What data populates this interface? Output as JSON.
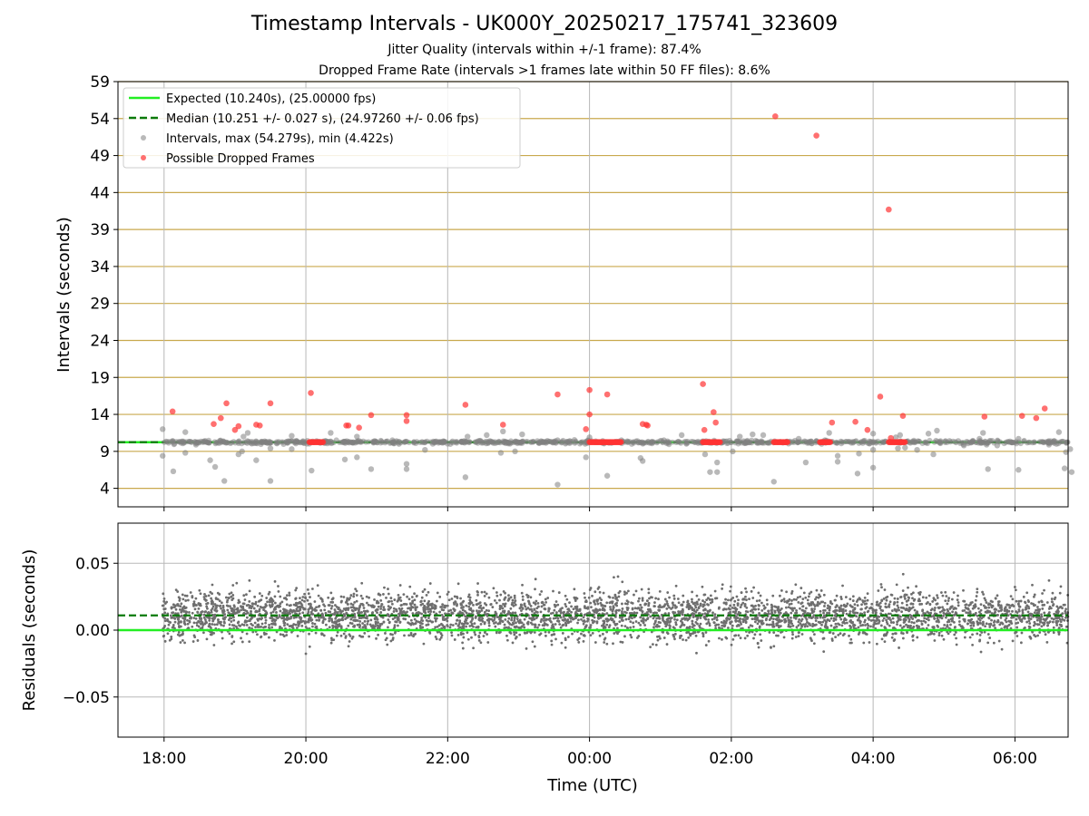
{
  "title": "Timestamp Intervals - UK000Y_20250217_175741_323609",
  "subtitle_jitter": "Jitter Quality (intervals within +/-1 frame): 87.4%",
  "subtitle_dropped": "Dropped Frame Rate (intervals >1 frames late within 50 FF files): 8.6%",
  "colors": {
    "expected": "#22ee22",
    "median": "#0a7a0a",
    "intervals": "#808080",
    "dropped": "#ff3333",
    "hgrid": "#c9a94e",
    "vgrid": "#b8b8b8"
  },
  "chart_data": [
    {
      "type": "scatter",
      "ylabel": "Intervals (seconds)",
      "ylim": [
        1.5,
        59
      ],
      "yticks": [
        4,
        9,
        14,
        19,
        24,
        29,
        34,
        39,
        44,
        49,
        54,
        59
      ],
      "grid": true,
      "legend_position": "top-left",
      "legend": [
        "Expected (10.240s), (25.00000 fps)",
        "Median (10.251 +/- 0.027 s), (24.97260 +/- 0.06 fps)",
        "Intervals, max (54.279s), min (4.422s)",
        "Possible Dropped Frames"
      ],
      "expected_interval": 10.24,
      "median_interval": 10.251,
      "series": [
        {
          "name": "Intervals, max (54.279s), min (4.422s)",
          "points": [
            [
              17.98,
              12.0
            ],
            [
              17.98,
              8.4
            ],
            [
              18.13,
              6.3
            ],
            [
              18.3,
              8.8
            ],
            [
              18.3,
              11.6
            ],
            [
              18.45,
              9.9
            ],
            [
              18.65,
              7.8
            ],
            [
              18.72,
              6.9
            ],
            [
              18.85,
              5.0
            ],
            [
              19.05,
              8.6
            ],
            [
              19.1,
              9.0
            ],
            [
              19.12,
              11.0
            ],
            [
              19.18,
              11.5
            ],
            [
              19.3,
              7.8
            ],
            [
              19.5,
              5.0
            ],
            [
              19.5,
              9.4
            ],
            [
              19.8,
              9.3
            ],
            [
              19.8,
              11.1
            ],
            [
              20.08,
              6.4
            ],
            [
              20.35,
              11.5
            ],
            [
              20.55,
              7.9
            ],
            [
              20.72,
              8.2
            ],
            [
              20.72,
              11.0
            ],
            [
              20.92,
              6.6
            ],
            [
              21.22,
              10.5
            ],
            [
              21.42,
              6.6
            ],
            [
              21.42,
              7.3
            ],
            [
              21.68,
              9.2
            ],
            [
              21.95,
              10.3
            ],
            [
              22.25,
              5.5
            ],
            [
              22.28,
              11.0
            ],
            [
              22.55,
              11.2
            ],
            [
              22.75,
              8.8
            ],
            [
              22.78,
              11.7
            ],
            [
              22.95,
              9.0
            ],
            [
              23.05,
              11.3
            ],
            [
              23.55,
              4.5
            ],
            [
              23.55,
              10.5
            ],
            [
              23.72,
              10.4
            ],
            [
              23.95,
              8.2
            ],
            [
              24.0,
              10.9
            ],
            [
              24.25,
              5.7
            ],
            [
              24.45,
              10.5
            ],
            [
              24.72,
              8.1
            ],
            [
              24.75,
              7.7
            ],
            [
              25.05,
              10.5
            ],
            [
              25.25,
              10.3
            ],
            [
              25.3,
              11.2
            ],
            [
              25.63,
              8.6
            ],
            [
              25.7,
              6.2
            ],
            [
              25.8,
              6.2
            ],
            [
              25.8,
              7.5
            ],
            [
              26.02,
              9.0
            ],
            [
              26.12,
              11.0
            ],
            [
              26.3,
              11.3
            ],
            [
              26.45,
              11.2
            ],
            [
              26.6,
              4.9
            ],
            [
              26.95,
              10.7
            ],
            [
              27.05,
              7.5
            ],
            [
              27.32,
              10.5
            ],
            [
              27.38,
              11.5
            ],
            [
              27.5,
              7.6
            ],
            [
              27.5,
              8.4
            ],
            [
              27.78,
              6.0
            ],
            [
              27.8,
              8.7
            ],
            [
              28.0,
              11.4
            ],
            [
              28.0,
              6.8
            ],
            [
              28.0,
              9.2
            ],
            [
              28.32,
              10.9
            ],
            [
              28.35,
              9.4
            ],
            [
              28.38,
              11.2
            ],
            [
              28.45,
              9.5
            ],
            [
              28.62,
              9.2
            ],
            [
              28.78,
              11.4
            ],
            [
              28.85,
              8.6
            ],
            [
              28.9,
              11.8
            ],
            [
              29.2,
              10.4
            ],
            [
              29.28,
              9.8
            ],
            [
              29.5,
              10.7
            ],
            [
              29.55,
              11.5
            ],
            [
              29.62,
              6.6
            ],
            [
              29.6,
              9.9
            ],
            [
              29.75,
              9.8
            ],
            [
              30.05,
              6.5
            ],
            [
              30.05,
              10.7
            ],
            [
              30.48,
              9.9
            ],
            [
              30.62,
              11.6
            ],
            [
              30.7,
              6.7
            ],
            [
              30.72,
              8.9
            ],
            [
              30.8,
              6.2
            ],
            [
              30.78,
              9.3
            ]
          ]
        },
        {
          "name": "Possible Dropped Frames",
          "points": [
            [
              18.12,
              14.4
            ],
            [
              18.7,
              12.7
            ],
            [
              18.8,
              13.5
            ],
            [
              18.88,
              15.5
            ],
            [
              19.0,
              11.9
            ],
            [
              19.05,
              12.4
            ],
            [
              19.3,
              12.6
            ],
            [
              19.35,
              12.5
            ],
            [
              19.5,
              15.5
            ],
            [
              20.07,
              16.9
            ],
            [
              20.57,
              12.5
            ],
            [
              20.6,
              12.5
            ],
            [
              20.75,
              12.2
            ],
            [
              20.92,
              13.9
            ],
            [
              21.42,
              13.9
            ],
            [
              21.42,
              13.1
            ],
            [
              22.25,
              15.3
            ],
            [
              22.78,
              12.6
            ],
            [
              23.55,
              16.7
            ],
            [
              23.95,
              12.0
            ],
            [
              24.0,
              17.3
            ],
            [
              24.0,
              14.0
            ],
            [
              24.25,
              16.7
            ],
            [
              24.75,
              12.7
            ],
            [
              24.8,
              12.6
            ],
            [
              24.82,
              12.5
            ],
            [
              25.6,
              18.1
            ],
            [
              25.62,
              11.9
            ],
            [
              25.75,
              14.3
            ],
            [
              25.78,
              12.9
            ],
            [
              26.62,
              54.3
            ],
            [
              27.2,
              51.7
            ],
            [
              27.42,
              12.9
            ],
            [
              27.75,
              13.0
            ],
            [
              27.92,
              11.9
            ],
            [
              28.1,
              16.4
            ],
            [
              28.22,
              41.7
            ],
            [
              28.25,
              10.8
            ],
            [
              28.42,
              13.8
            ],
            [
              29.57,
              13.7
            ],
            [
              30.1,
              13.8
            ],
            [
              30.3,
              13.5
            ],
            [
              30.42,
              14.8
            ]
          ]
        }
      ],
      "dropped_clusters": [
        [
          20.05,
          20.25
        ],
        [
          24.0,
          24.45
        ],
        [
          25.6,
          25.85
        ],
        [
          26.6,
          26.8
        ],
        [
          27.25,
          27.4
        ],
        [
          28.22,
          28.45
        ]
      ]
    },
    {
      "type": "scatter",
      "ylabel": "Residuals (seconds)",
      "xlabel": "Time (UTC)",
      "ylim": [
        -0.08,
        0.08
      ],
      "yticks": [
        -0.05,
        0.0,
        0.05
      ],
      "ytick_labels": [
        "−0.05",
        "0.00",
        "0.05"
      ],
      "xticks": [
        18,
        20,
        22,
        24,
        26,
        28,
        30
      ],
      "xtick_labels": [
        "18:00",
        "20:00",
        "22:00",
        "00:00",
        "02:00",
        "04:00",
        "06:00"
      ],
      "xlim": [
        17.35,
        30.75
      ],
      "grid": true,
      "expected_residual": 0.0,
      "median_residual": 0.011,
      "residual_stats": {
        "count": 4200,
        "center": 0.011,
        "spread": 0.018
      }
    }
  ]
}
